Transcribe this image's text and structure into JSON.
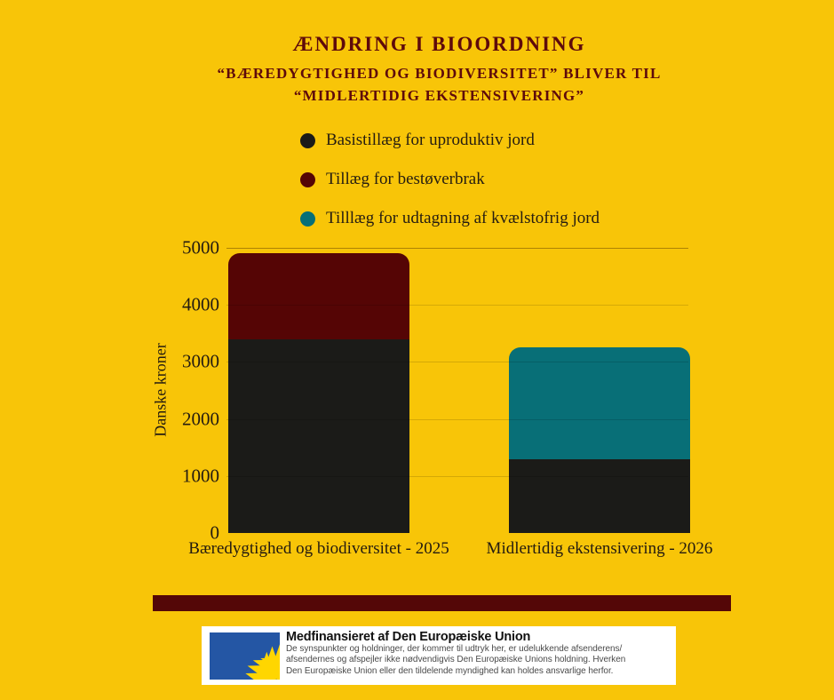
{
  "header": {
    "title": "ÆNDRING I BIOORDNING",
    "subtitle_line1": "“BÆREDYGTIGHED OG BIODIVERSITET” BLIVER TIL",
    "subtitle_line2": "“MIDLERTIDIG EKSTENSIVERING”"
  },
  "legend": {
    "items": [
      {
        "label": "Basistillæg for uproduktiv jord",
        "color": "#1b1b18"
      },
      {
        "label": "Tillæg for bestøverbrak",
        "color": "#550505"
      },
      {
        "label": "Tilllæg for udtagning af kvælstofrig jord",
        "color": "#086f77"
      }
    ]
  },
  "chart_data": {
    "type": "bar",
    "stacked": true,
    "categories": [
      "Bæredygtighed og biodiversitet - 2025",
      "Midlertidig ekstensivering - 2026"
    ],
    "series": [
      {
        "name": "Basistillæg for uproduktiv jord",
        "color": "#1b1b18",
        "values": [
          3400,
          1300
        ]
      },
      {
        "name": "Tillæg for bestøverbrak",
        "color": "#550505",
        "values": [
          1500,
          0
        ]
      },
      {
        "name": "Tilllæg for udtagning af kvælstofrig jord",
        "color": "#086f77",
        "values": [
          0,
          1950
        ]
      }
    ],
    "totals": [
      4900,
      3250
    ],
    "xlabel": "",
    "ylabel": "Danske kroner",
    "ylim": [
      0,
      5000
    ],
    "y_ticks": [
      "5000",
      "4000",
      "3000",
      "2000",
      "1000",
      "0"
    ],
    "grid": "horizontal",
    "legend_position": "top-left"
  },
  "eu_attribution": {
    "title": "Medfinansieret af Den Europæiske Union",
    "body_lines": [
      "De synspunkter og holdninger, der kommer til udtryk her, er udelukkende afsenderens/",
      "afsendernes og afspejler ikke nødvendigvis Den Europæiske Unions holdning. Hverken",
      "Den Europæiske Union eller den tildelende myndighed kan holdes ansvarlige herfor."
    ]
  },
  "colors": {
    "background": "#f8c508",
    "maroon_text": "#5e0a0b",
    "divider": "#540707",
    "black_bar": "#1b1b18",
    "red_bar": "#550505",
    "teal_bar": "#086f77",
    "eu_flag_blue": "#2456a4",
    "eu_flag_star": "#ffd600"
  }
}
